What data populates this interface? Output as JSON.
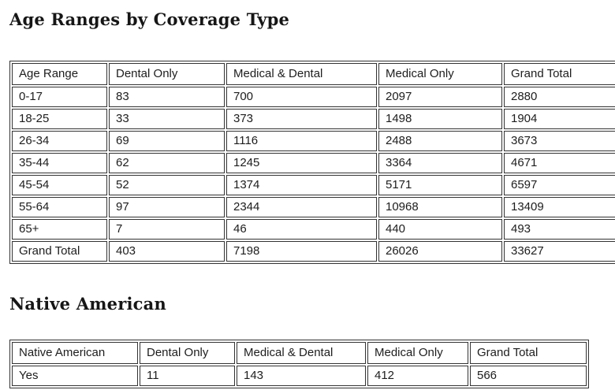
{
  "colors": {
    "background": "#ffffff",
    "text": "#1d1d1d",
    "title_text": "#161616",
    "table_border": "#333333"
  },
  "chart_data": [
    {
      "type": "table",
      "title": "Age Ranges by Coverage Type",
      "columns": [
        "Age Range",
        "Dental Only",
        "Medical & Dental",
        "Medical Only",
        "Grand Total"
      ],
      "rows": [
        [
          "0-17",
          83,
          700,
          2097,
          2880
        ],
        [
          "18-25",
          33,
          373,
          1498,
          1904
        ],
        [
          "26-34",
          69,
          1116,
          2488,
          3673
        ],
        [
          "35-44",
          62,
          1245,
          3364,
          4671
        ],
        [
          "45-54",
          52,
          1374,
          5171,
          6597
        ],
        [
          "55-64",
          97,
          2344,
          10968,
          13409
        ],
        [
          "65+",
          7,
          46,
          440,
          493
        ],
        [
          "Grand Total",
          403,
          7198,
          26026,
          33627
        ]
      ]
    },
    {
      "type": "table",
      "title": "Native American",
      "columns": [
        "Native American",
        "Dental Only",
        "Medical & Dental",
        "Medical Only",
        "Grand Total"
      ],
      "rows": [
        [
          "Yes",
          11,
          143,
          412,
          566
        ]
      ]
    }
  ]
}
